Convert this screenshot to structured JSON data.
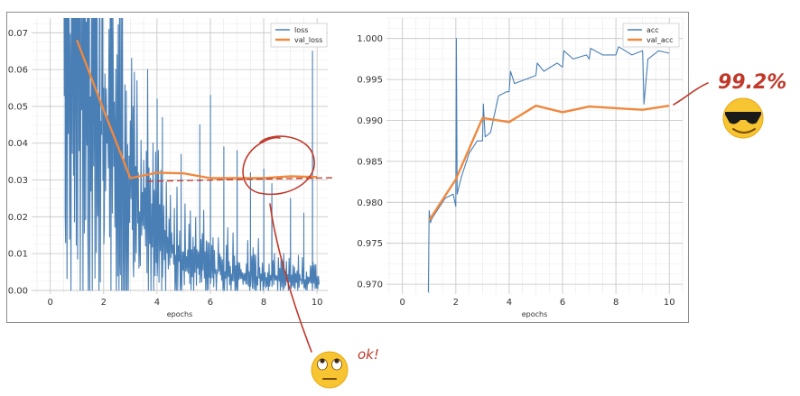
{
  "chart_data": [
    {
      "type": "line",
      "xlabel": "epochs",
      "ylabel": "",
      "xlim": [
        -0.7,
        10.4
      ],
      "ylim": [
        -0.001,
        0.074
      ],
      "x_ticks": [
        0,
        2,
        4,
        6,
        8,
        10
      ],
      "y_ticks": [
        0.0,
        0.01,
        0.02,
        0.03,
        0.04,
        0.05,
        0.06,
        0.07
      ],
      "y_tick_labels": [
        "0.00",
        "0.01",
        "0.02",
        "0.03",
        "0.04",
        "0.05",
        "0.06",
        "0.07"
      ],
      "grid": true,
      "legend": "top-right",
      "series": [
        {
          "name": "loss",
          "color": "#4a7fb5",
          "style": "noisy-per-batch",
          "trend_x": [
            0.5,
            1,
            1.5,
            2,
            2.5,
            3,
            3.5,
            4,
            5,
            6,
            7,
            8,
            9,
            10.1
          ],
          "trend_y": [
            0.07,
            0.06,
            0.05,
            0.042,
            0.034,
            0.026,
            0.018,
            0.013,
            0.008,
            0.006,
            0.004,
            0.0035,
            0.003,
            0.0025
          ],
          "spike_points": [
            [
              0.55,
              0.074
            ],
            [
              0.9,
              0.074
            ],
            [
              1.4,
              0.065
            ],
            [
              2.0,
              0.055
            ],
            [
              2.6,
              0.052
            ],
            [
              3.1,
              0.05
            ],
            [
              4.0,
              0.052
            ],
            [
              4.2,
              0.047
            ],
            [
              4.9,
              0.037
            ],
            [
              5.6,
              0.045
            ],
            [
              6.0,
              0.053
            ],
            [
              6.5,
              0.039
            ],
            [
              7.0,
              0.038
            ],
            [
              7.5,
              0.032
            ],
            [
              8.0,
              0.033
            ],
            [
              8.3,
              0.029
            ],
            [
              9.0,
              0.025
            ],
            [
              9.5,
              0.021
            ],
            [
              9.83,
              0.065
            ]
          ]
        },
        {
          "name": "val_loss",
          "color": "#f0883e",
          "x": [
            1,
            2,
            3,
            4,
            5,
            6,
            7,
            8,
            9,
            10
          ],
          "y": [
            0.068,
            0.049,
            0.0305,
            0.032,
            0.0318,
            0.0305,
            0.0305,
            0.0305,
            0.031,
            0.0308
          ]
        }
      ]
    },
    {
      "type": "line",
      "xlabel": "epochs",
      "ylabel": "",
      "xlim": [
        -0.6,
        10.5
      ],
      "ylim": [
        0.9688,
        1.0025
      ],
      "x_ticks": [
        0,
        2,
        4,
        6,
        8,
        10
      ],
      "y_ticks": [
        0.97,
        0.975,
        0.98,
        0.985,
        0.99,
        0.995,
        1.0
      ],
      "y_tick_labels": [
        "0.970",
        "0.975",
        "0.980",
        "0.985",
        "0.990",
        "0.995",
        "1.000"
      ],
      "grid": true,
      "legend": "top-right",
      "series": [
        {
          "name": "acc",
          "color": "#4a7fb5",
          "style": "per-batch",
          "x": [
            0.97,
            1.0,
            1.05,
            1.1,
            1.3,
            1.6,
            1.9,
            2.0,
            2.02,
            2.05,
            2.2,
            2.5,
            2.8,
            3.0,
            3.03,
            3.1,
            3.3,
            3.6,
            3.9,
            4.0,
            4.05,
            4.2,
            4.6,
            5.0,
            5.05,
            5.3,
            5.8,
            6.0,
            6.05,
            6.4,
            6.9,
            7.0,
            7.05,
            7.5,
            8.0,
            8.1,
            8.6,
            9.0,
            9.05,
            9.2,
            9.6,
            10.0
          ],
          "y": [
            0.969,
            0.979,
            0.9775,
            0.978,
            0.979,
            0.9805,
            0.981,
            0.9795,
            1.0,
            0.981,
            0.983,
            0.986,
            0.9875,
            0.9875,
            0.992,
            0.988,
            0.9885,
            0.993,
            0.9935,
            0.9935,
            0.996,
            0.9945,
            0.995,
            0.9955,
            0.997,
            0.996,
            0.997,
            0.9965,
            0.9985,
            0.9975,
            0.998,
            0.9975,
            0.9988,
            0.998,
            0.998,
            0.999,
            0.998,
            0.9985,
            0.992,
            0.9975,
            0.9985,
            0.9982
          ]
        },
        {
          "name": "val_acc",
          "color": "#f0883e",
          "x": [
            1,
            2,
            3,
            4,
            5,
            6,
            7,
            8,
            9,
            10
          ],
          "y": [
            0.9778,
            0.9828,
            0.9903,
            0.9898,
            0.9918,
            0.991,
            0.9917,
            0.9915,
            0.9913,
            0.9918
          ]
        }
      ]
    }
  ],
  "annotations": {
    "accuracy_note": "99.2%",
    "ok_note": "ok!",
    "color": "#c0392b",
    "emoji_cool": "sunglasses-face",
    "emoji_eyeroll": "eye-roll-face"
  }
}
